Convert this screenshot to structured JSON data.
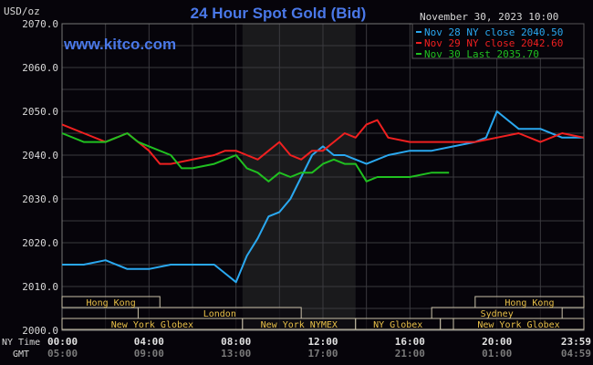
{
  "chart_data": {
    "type": "line",
    "title": "24 Hour Spot Gold (Bid)",
    "watermark": "www.kitco.com",
    "date_label": "November 30, 2023 10:00",
    "ylabel": "USD/oz",
    "ylim": [
      2000,
      2070
    ],
    "yticks": [
      "2000.0",
      "2010.0",
      "2020.0",
      "2030.0",
      "2040.0",
      "2050.0",
      "2060.0",
      "2070.0"
    ],
    "ytick_values": [
      2000,
      2010,
      2020,
      2030,
      2040,
      2050,
      2060,
      2070
    ],
    "xlim": [
      0,
      24
    ],
    "xaxis_rows": [
      {
        "label": "NY Time",
        "ticks": [
          "00:00",
          "04:00",
          "08:00",
          "12:00",
          "16:00",
          "20:00",
          "23:59"
        ]
      },
      {
        "label": "GMT",
        "ticks": [
          "05:00",
          "09:00",
          "13:00",
          "17:00",
          "21:00",
          "01:00",
          "04:59"
        ]
      }
    ],
    "xtick_hours": [
      0,
      4,
      8,
      12,
      16,
      20,
      23.98
    ],
    "grid": true,
    "legend_position": "top-right",
    "highlight_hours": [
      8.3,
      13.5
    ],
    "series": [
      {
        "name": "Nov 28 NY close 2040.50",
        "color": "#2aa8f0",
        "x": [
          0,
          1,
          2,
          3,
          4,
          5,
          6,
          7,
          7.5,
          8,
          8.5,
          9,
          9.5,
          10,
          10.5,
          11,
          11.5,
          12,
          12.5,
          13,
          13.5,
          14,
          15,
          16,
          17,
          18,
          19,
          19.5,
          20,
          20.5,
          21,
          22,
          23,
          24
        ],
        "y": [
          2015,
          2015,
          2016,
          2014,
          2014,
          2015,
          2015,
          2015,
          2013,
          2011,
          2017,
          2021,
          2026,
          2027,
          2030,
          2035,
          2040,
          2042,
          2040,
          2040,
          2039,
          2038,
          2040,
          2041,
          2041,
          2042,
          2043,
          2044,
          2050,
          2048,
          2046,
          2046,
          2044,
          2044
        ]
      },
      {
        "name": "Nov 29 NY close 2042.60",
        "color": "#f02020",
        "x": [
          0,
          1,
          2,
          3,
          4,
          4.5,
          5,
          6,
          7,
          7.5,
          8,
          8.5,
          9,
          9.5,
          10,
          10.5,
          11,
          11.5,
          12,
          12.5,
          13,
          13.5,
          14,
          14.5,
          15,
          16,
          17,
          18,
          19,
          20,
          21,
          22,
          23,
          24
        ],
        "y": [
          2047,
          2045,
          2043,
          2045,
          2041,
          2038,
          2038,
          2039,
          2040,
          2041,
          2041,
          2040,
          2039,
          2041,
          2043,
          2040,
          2039,
          2041,
          2041,
          2043,
          2045,
          2044,
          2047,
          2048,
          2044,
          2043,
          2043,
          2043,
          2043,
          2044,
          2045,
          2043,
          2045,
          2044
        ]
      },
      {
        "name": "Nov 30 Last 2035.70",
        "color": "#20c020",
        "x": [
          0,
          1,
          2,
          3,
          3.5,
          4,
          5,
          5.5,
          6,
          7,
          7.5,
          8,
          8.5,
          9,
          9.5,
          10,
          10.5,
          11,
          11.5,
          12,
          12.5,
          13,
          13.5,
          14,
          14.5,
          15,
          16,
          17,
          17.8
        ],
        "y": [
          2045,
          2043,
          2043,
          2045,
          2043,
          2042,
          2040,
          2037,
          2037,
          2038,
          2039,
          2040,
          2037,
          2036,
          2034,
          2036,
          2035,
          2036,
          2036,
          2038,
          2039,
          2038,
          2038,
          2034,
          2035,
          2035,
          2035,
          2036,
          2036
        ]
      }
    ],
    "sessions": [
      {
        "label": "Hong Kong",
        "row": 0,
        "start": 0,
        "end": 4.5
      },
      {
        "label": "London",
        "row": 1,
        "start": 3.5,
        "end": 11
      },
      {
        "label": "New York Globex",
        "row": 2,
        "start": 0,
        "end": 8.3
      },
      {
        "label": "New York NYMEX",
        "row": 2,
        "start": 8.3,
        "end": 13.5
      },
      {
        "label": "NY Globex",
        "row": 2,
        "start": 13.5,
        "end": 17.4
      },
      {
        "label": "",
        "row": 2,
        "start": 17.4,
        "end": 18
      },
      {
        "label": "Sydney",
        "row": 1,
        "start": 17,
        "end": 23
      },
      {
        "label": "Hong Kong",
        "row": 0,
        "start": 19,
        "end": 24
      },
      {
        "label": "New York Globex",
        "row": 2,
        "start": 18,
        "end": 24
      }
    ]
  }
}
